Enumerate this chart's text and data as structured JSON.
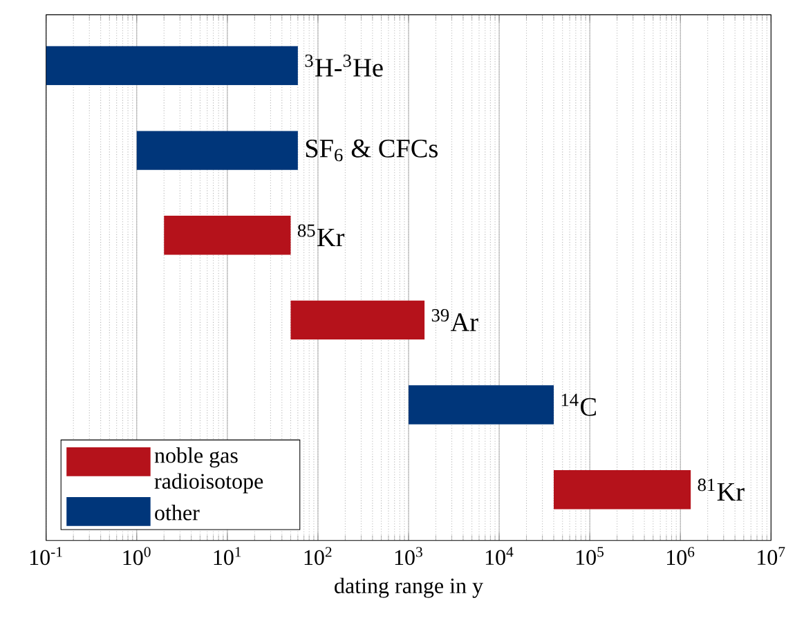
{
  "chart_data": {
    "type": "bar",
    "orientation": "horizontal",
    "log": "x",
    "grid": "x",
    "legend": "bottom left",
    "tick_labels": "x",
    "xlabel": "dating range in y",
    "categories": [
      "$^{3}$H-$^{3}$He",
      "SF$_{6}$ & CFCs",
      "$^{85}$Kr",
      "$^{39}$Ar",
      "$^{14}$C",
      "$^{81}$Kr"
    ],
    "xlim": [
      0.1,
      10000000
    ],
    "xticks": [
      {
        "value": 0.1,
        "label": "10$^{-1}$"
      },
      {
        "value": 1,
        "label": "10$^{0}$"
      },
      {
        "value": 10,
        "label": "10$^{1}$"
      },
      {
        "value": 100,
        "label": "10$^{2}$"
      },
      {
        "value": 1000,
        "label": "10$^{3}$"
      },
      {
        "value": 10000,
        "label": "10$^{4}$"
      },
      {
        "value": 100000,
        "label": "10$^{5}$"
      },
      {
        "value": 1000000,
        "label": "10$^{6}$"
      },
      {
        "value": 10000000,
        "label": "10$^{7}$"
      }
    ],
    "series": [
      {
        "name": "noble gas radioisotope",
        "color": "#b5121b",
        "base": [
          null,
          null,
          2,
          50,
          null,
          40000
        ],
        "values": [
          null,
          null,
          48,
          1450,
          null,
          1260000
        ]
      },
      {
        "name": "other",
        "color": "#00367a",
        "base": [
          0.1,
          1,
          null,
          null,
          1000,
          null
        ],
        "values": [
          59.9,
          59,
          null,
          null,
          39000,
          null
        ]
      }
    ]
  }
}
